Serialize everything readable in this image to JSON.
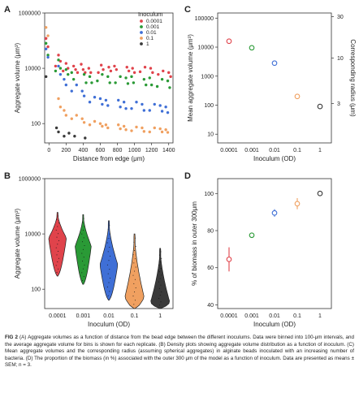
{
  "caption": {
    "label": "FIG 2",
    "text": "(A) Aggregate volumes as a function of distance from the bead edge between the different inoculums. Data were binned into 100-μm intervals, and the average aggregate volume for bins is shown for each replicate. (B) Density plots showing aggregate volume distribution as a function of inoculum. (C) Mean aggregate volumes and the corresponding radius (assuming spherical aggregates) in alginate beads inoculated with an increasing number of bacteria. (D) The proportion of the biomass (in %) associated with the outer 300 μm of the model as a function of inoculum. Data are presented as means ± SEM; n = 3."
  },
  "colors": {
    "0.0001": "#e0434b",
    "0.001": "#2a9a36",
    "0.01": "#3f6fd6",
    "0.1": "#f0a060",
    "1": "#3a3a3a"
  },
  "chart_data": [
    {
      "panel": "A",
      "type": "scatter",
      "xlabel": "Distance from edge (μm)",
      "ylabel": "Aggregate volume (μm³)",
      "yscale": "log",
      "xlim": [
        -50,
        1450
      ],
      "ylim": [
        20,
        1000000
      ],
      "x_ticks": [
        0,
        200,
        400,
        600,
        800,
        1000,
        1200,
        1400
      ],
      "y_ticks": [
        {
          "v": 100,
          "label": "100"
        },
        {
          "v": 10000,
          "label": "10000"
        },
        {
          "v": 1000000,
          "label": "1000000"
        }
      ],
      "legend_title": "Inoculum",
      "legend_position": "top-right",
      "series": [
        {
          "name": "0.0001",
          "points": [
            [
              0,
              120000
            ],
            [
              0,
              60000
            ],
            [
              100,
              30000
            ],
            [
              100,
              18000
            ],
            [
              100,
              12000
            ],
            [
              200,
              15000
            ],
            [
              200,
              10000
            ],
            [
              200,
              8000
            ],
            [
              300,
              12000
            ],
            [
              300,
              9000
            ],
            [
              300,
              7000
            ],
            [
              400,
              14000
            ],
            [
              400,
              9000
            ],
            [
              400,
              7000
            ],
            [
              500,
              10000
            ],
            [
              500,
              7000
            ],
            [
              600,
              13000
            ],
            [
              600,
              9000
            ],
            [
              600,
              7000
            ],
            [
              700,
              11000
            ],
            [
              700,
              8000
            ],
            [
              800,
              12000
            ],
            [
              800,
              9000
            ],
            [
              900,
              11000
            ],
            [
              900,
              8000
            ],
            [
              1000,
              10000
            ],
            [
              1000,
              7000
            ],
            [
              1100,
              11000
            ],
            [
              1100,
              7500
            ],
            [
              1200,
              10000
            ],
            [
              1200,
              7000
            ],
            [
              1300,
              8000
            ],
            [
              1300,
              6000
            ],
            [
              1400,
              7000
            ],
            [
              1400,
              5000
            ]
          ]
        },
        {
          "name": "0.001",
          "points": [
            [
              0,
              80000
            ],
            [
              0,
              30000
            ],
            [
              100,
              20000
            ],
            [
              100,
              10000
            ],
            [
              100,
              8000
            ],
            [
              200,
              9000
            ],
            [
              200,
              6000
            ],
            [
              300,
              7000
            ],
            [
              300,
              4000
            ],
            [
              400,
              6000
            ],
            [
              400,
              3000
            ],
            [
              500,
              5000
            ],
            [
              500,
              3000
            ],
            [
              600,
              6000
            ],
            [
              600,
              3500
            ],
            [
              700,
              5000
            ],
            [
              700,
              3000
            ],
            [
              800,
              5000
            ],
            [
              800,
              3000
            ],
            [
              900,
              4500
            ],
            [
              900,
              2800
            ],
            [
              1000,
              5000
            ],
            [
              1000,
              3000
            ],
            [
              1100,
              4000
            ],
            [
              1100,
              2500
            ],
            [
              1200,
              4500
            ],
            [
              1200,
              2500
            ],
            [
              1300,
              4000
            ],
            [
              1300,
              2200
            ],
            [
              1400,
              3500
            ],
            [
              1400,
              2000
            ]
          ]
        },
        {
          "name": "0.01",
          "points": [
            [
              0,
              50000
            ],
            [
              0,
              25000
            ],
            [
              100,
              12000
            ],
            [
              100,
              6000
            ],
            [
              200,
              4000
            ],
            [
              200,
              2500
            ],
            [
              300,
              2500
            ],
            [
              300,
              1500
            ],
            [
              400,
              1500
            ],
            [
              400,
              1000
            ],
            [
              500,
              900
            ],
            [
              500,
              600
            ],
            [
              600,
              800
            ],
            [
              600,
              500
            ],
            [
              700,
              700
            ],
            [
              700,
              450
            ],
            [
              800,
              700
            ],
            [
              800,
              400
            ],
            [
              900,
              600
            ],
            [
              900,
              350
            ],
            [
              1000,
              600
            ],
            [
              1000,
              350
            ],
            [
              1100,
              500
            ],
            [
              1100,
              300
            ],
            [
              1200,
              500
            ],
            [
              1200,
              300
            ],
            [
              1300,
              450
            ],
            [
              1300,
              280
            ],
            [
              1400,
              400
            ],
            [
              1400,
              250
            ]
          ]
        },
        {
          "name": "0.1",
          "points": [
            [
              0,
              300000
            ],
            [
              0,
              150000
            ],
            [
              100,
              800
            ],
            [
              100,
              400
            ],
            [
              200,
              300
            ],
            [
              200,
              200
            ],
            [
              300,
              200
            ],
            [
              300,
              150
            ],
            [
              400,
              150
            ],
            [
              400,
              110
            ],
            [
              500,
              120
            ],
            [
              500,
              90
            ],
            [
              600,
              100
            ],
            [
              600,
              80
            ],
            [
              700,
              90
            ],
            [
              700,
              70
            ],
            [
              800,
              90
            ],
            [
              800,
              65
            ],
            [
              900,
              80
            ],
            [
              900,
              60
            ],
            [
              1000,
              75
            ],
            [
              1000,
              55
            ],
            [
              1100,
              70
            ],
            [
              1100,
              52
            ],
            [
              1200,
              70
            ],
            [
              1200,
              50
            ],
            [
              1300,
              65
            ],
            [
              1300,
              50
            ],
            [
              1400,
              60
            ],
            [
              1400,
              48
            ]
          ]
        },
        {
          "name": "1",
          "points": [
            [
              0,
              5000
            ],
            [
              100,
              70
            ],
            [
              100,
              50
            ],
            [
              200,
              45
            ],
            [
              200,
              35
            ],
            [
              300,
              35
            ],
            [
              400,
              30
            ]
          ]
        }
      ]
    },
    {
      "panel": "B",
      "type": "violin",
      "xlabel": "Inoculum (OD)",
      "ylabel": "Aggregate volume (μm³)",
      "yscale": "log",
      "categories": [
        "0.0001",
        "0.001",
        "0.01",
        "0.1",
        "1"
      ],
      "y_ticks": [
        {
          "v": 100,
          "label": "100"
        },
        {
          "v": 10000,
          "label": "10000"
        },
        {
          "v": 1000000,
          "label": "1000000"
        }
      ],
      "ranges": [
        [
          300,
          60000
        ],
        [
          150,
          50000
        ],
        [
          40,
          30000
        ],
        [
          20,
          10000
        ],
        [
          20,
          3000
        ]
      ]
    },
    {
      "panel": "C",
      "type": "scatter",
      "xlabel": "Inoculum (OD)",
      "ylabel": "Mean aggregate volume (μm³)",
      "ylabel_right": "Corresponding radius (μm)",
      "yscale": "log",
      "categories": [
        "0.0001",
        "0.001",
        "0.01",
        "0.1",
        "1"
      ],
      "values": [
        16000,
        9500,
        2800,
        200,
        90
      ],
      "y_ticks": [
        {
          "v": 10,
          "label": "10"
        },
        {
          "v": 100,
          "label": "100"
        },
        {
          "v": 1000,
          "label": "1000"
        },
        {
          "v": 10000,
          "label": "10000"
        },
        {
          "v": 100000,
          "label": "100000"
        }
      ],
      "right_ticks": [
        {
          "v": 3,
          "label": "3"
        },
        {
          "v": 10,
          "label": "10"
        },
        {
          "v": 30,
          "label": "30"
        }
      ]
    },
    {
      "panel": "D",
      "type": "scatter",
      "xlabel": "Inoculum (OD)",
      "ylabel": "% of biomass in outer 300μm",
      "ylim": [
        40,
        100
      ],
      "categories": [
        "0.0001",
        "0.001",
        "0.01",
        "0.1",
        "1"
      ],
      "values": [
        64.5,
        77.5,
        89.5,
        94.5,
        100
      ],
      "errors": [
        6.5,
        1.2,
        2,
        3,
        0.2
      ],
      "y_ticks": [
        40,
        60,
        80,
        100
      ]
    }
  ]
}
